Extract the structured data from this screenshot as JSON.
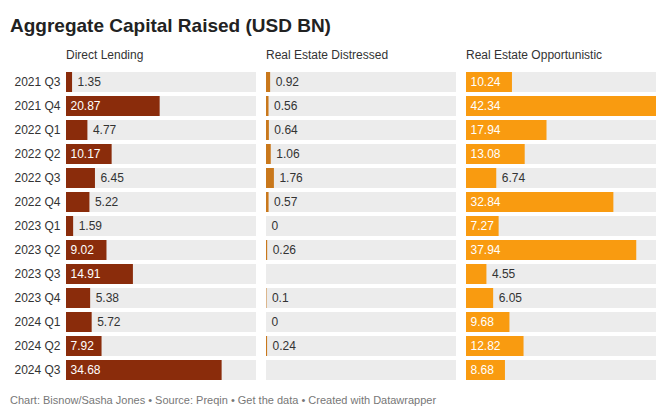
{
  "chart_data": {
    "type": "bar",
    "orientation": "horizontal",
    "title": "Aggregate Capital Raised (USD BN)",
    "caption": "Chart: Bisnow/Sasha Jones • Source: Preqin • Get the data • Created with Datawrapper",
    "categories": [
      "2021 Q3",
      "2021 Q4",
      "2022 Q1",
      "2022 Q2",
      "2022 Q3",
      "2022 Q4",
      "2023 Q1",
      "2023 Q2",
      "2023 Q3",
      "2023 Q4",
      "2024 Q1",
      "2024 Q2",
      "2024 Q3"
    ],
    "series": [
      {
        "name": "Direct Lending",
        "color": "#8a2c0b",
        "values": [
          1.35,
          20.87,
          4.77,
          10.17,
          6.45,
          5.22,
          1.59,
          9.02,
          14.91,
          5.38,
          5.72,
          7.92,
          34.68
        ]
      },
      {
        "name": "Real Estate Distressed",
        "color": "#c9781c",
        "values": [
          0.92,
          0.56,
          0.64,
          1.06,
          1.76,
          0.57,
          0,
          0.26,
          null,
          0.1,
          0,
          0.24,
          null
        ]
      },
      {
        "name": "Real Estate Opportunistic",
        "color": "#f99b10",
        "values": [
          10.24,
          42.34,
          17.94,
          13.08,
          6.74,
          32.84,
          7.27,
          37.94,
          4.55,
          6.05,
          9.68,
          12.82,
          8.68
        ]
      }
    ],
    "xlim": [
      0,
      42.34
    ],
    "tick_labels": "y",
    "data_labels": true
  }
}
